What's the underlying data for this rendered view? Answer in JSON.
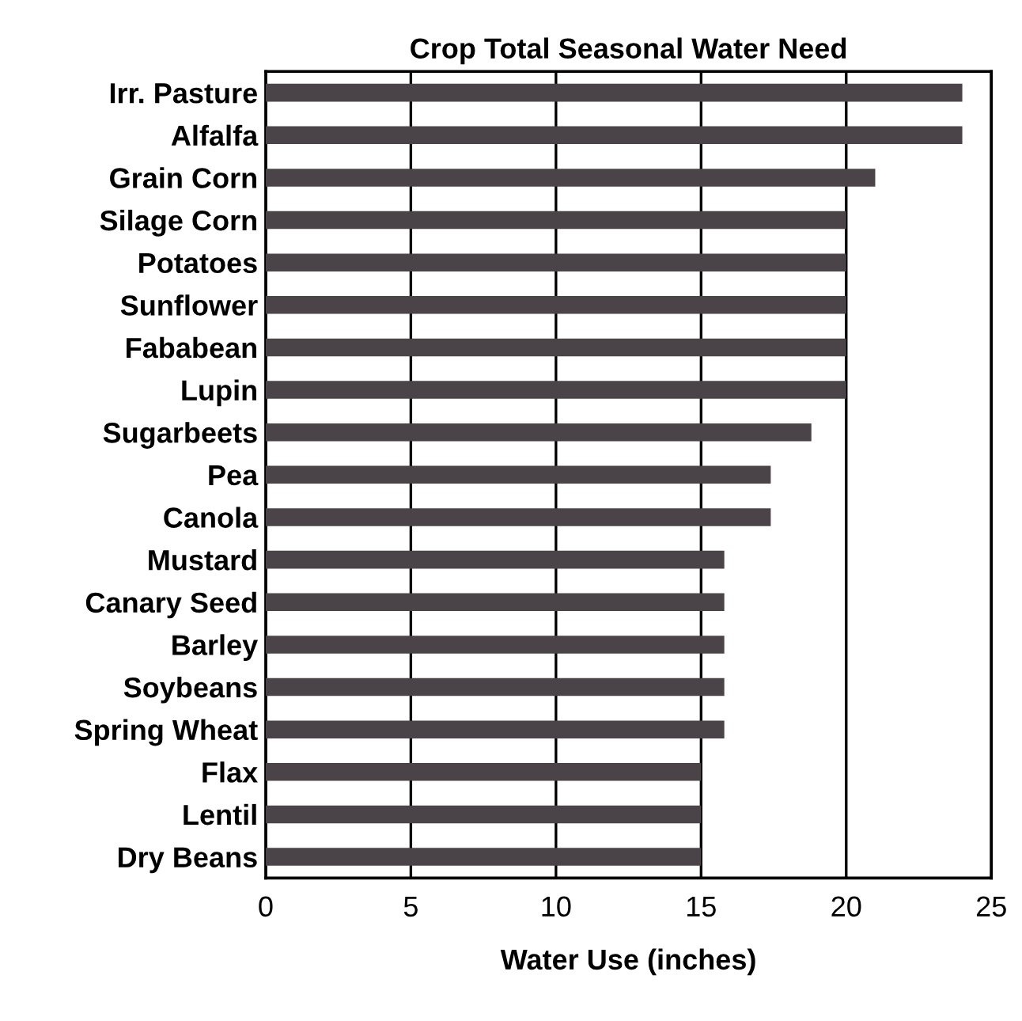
{
  "chart_data": {
    "type": "bar",
    "orientation": "horizontal",
    "title": "Crop Total Seasonal Water Need",
    "xlabel": "Water Use (inches)",
    "categories": [
      "Irr. Pasture",
      "Alfalfa",
      "Grain Corn",
      "Silage Corn",
      "Potatoes",
      "Sunflower",
      "Fababean",
      "Lupin",
      "Sugarbeets",
      "Pea",
      "Canola",
      "Mustard",
      "Canary Seed",
      "Barley",
      "Soybeans",
      "Spring Wheat",
      "Flax",
      "Lentil",
      "Dry Beans"
    ],
    "values": [
      24,
      24,
      21,
      20,
      20,
      20,
      20,
      20,
      18.8,
      17.4,
      17.4,
      15.8,
      15.8,
      15.8,
      15.8,
      15.8,
      15,
      15,
      15
    ],
    "color": "#4a4448",
    "xlim": [
      0,
      25
    ],
    "xticks": [
      0,
      5,
      10,
      15,
      20,
      25
    ],
    "grid": "x"
  }
}
